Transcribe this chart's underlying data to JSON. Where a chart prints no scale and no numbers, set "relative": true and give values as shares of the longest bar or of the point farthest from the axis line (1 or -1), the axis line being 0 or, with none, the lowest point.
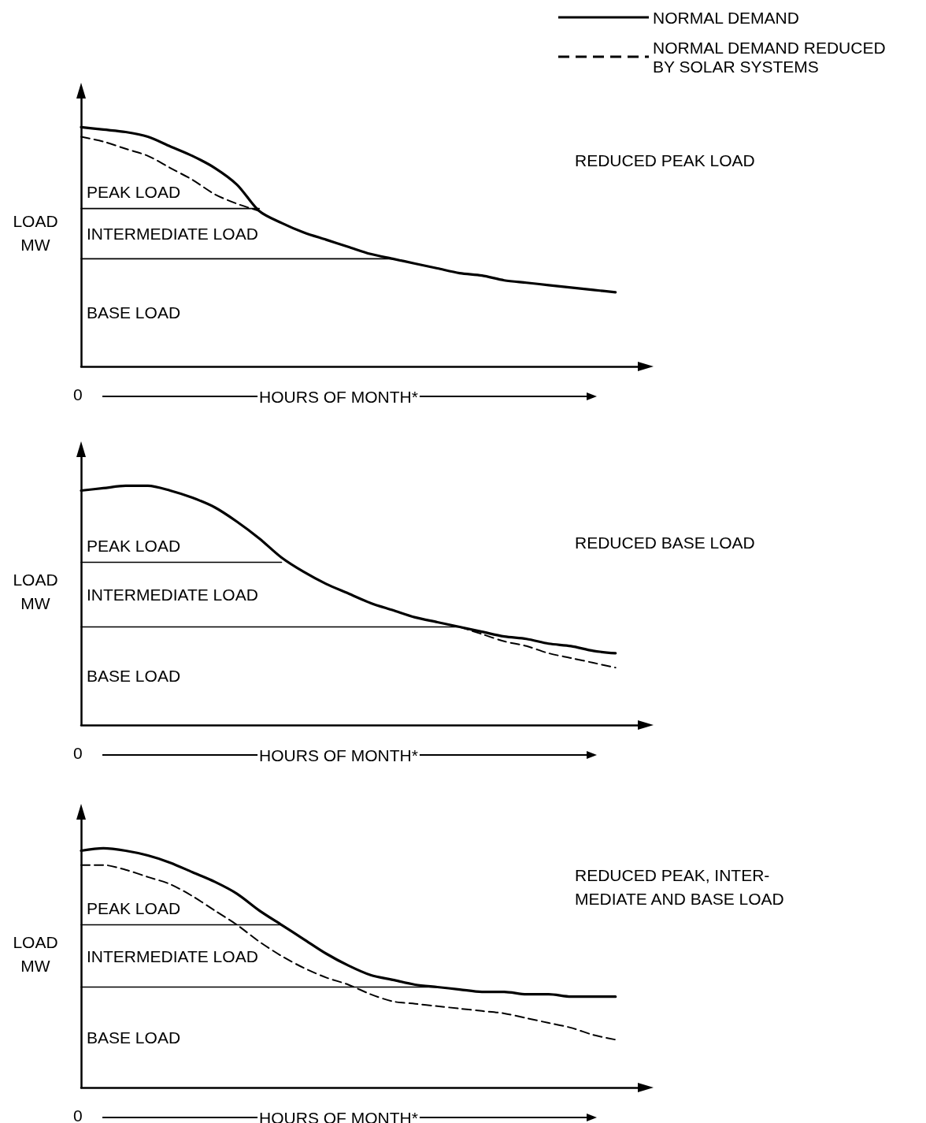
{
  "chart_data": [
    {
      "type": "line",
      "relative": true,
      "title": "REDUCED PEAK LOAD",
      "xlabel": "HOURS OF MONTH*",
      "ylabel": "LOAD\nMW",
      "legend": "top right",
      "marker": "none",
      "categories": [
        null,
        null,
        null,
        null,
        null,
        null,
        null,
        null,
        null,
        null,
        null,
        null,
        null,
        null,
        null,
        null,
        null,
        null,
        null,
        null,
        null,
        null,
        null,
        null,
        null,
        null
      ],
      "series": [
        {
          "name": "NORMAL DEMAND",
          "color": "#000000",
          "line_style": "solid",
          "values": [
            1,
            0.99,
            0.98,
            0.96,
            0.92,
            0.88,
            0.83,
            0.76,
            0.65,
            0.6,
            0.56,
            0.53,
            0.5,
            0.47,
            0.45,
            0.43,
            0.41,
            0.39,
            0.38,
            0.36,
            0.35,
            0.34,
            0.33,
            0.32,
            0.31,
            null
          ]
        },
        {
          "name": "NORMAL DEMAND REDUCED BY SOLAR SYSTEMS",
          "color": "#000000",
          "line_style": "dashed",
          "values": [
            0.96,
            0.94,
            0.91,
            0.88,
            0.83,
            0.78,
            0.72,
            0.68,
            0.65,
            null,
            null,
            null,
            null,
            null,
            null,
            null,
            null,
            null,
            null,
            null,
            null,
            null,
            null,
            null,
            null,
            null
          ]
        },
        {
          "color": "#000000",
          "line_style": "solid",
          "values": [
            0.66,
            0.66,
            0.66,
            0.66,
            0.66,
            0.66,
            0.66,
            0.66,
            0.66,
            null,
            null,
            null,
            null,
            null,
            null,
            null,
            null,
            null,
            null,
            null,
            null,
            null,
            null,
            null,
            null,
            null
          ]
        },
        {
          "color": "#000000",
          "line_style": "solid",
          "values": [
            0.45,
            0.45,
            0.45,
            0.45,
            0.45,
            0.45,
            0.45,
            0.45,
            0.45,
            0.45,
            0.45,
            0.45,
            0.45,
            0.45,
            0.45,
            null,
            null,
            null,
            null,
            null,
            null,
            null,
            null,
            null,
            null,
            null
          ]
        }
      ],
      "annotations": [
        "0",
        "PEAK LOAD",
        "INTERMEDIATE LOAD",
        "BASE LOAD"
      ]
    },
    {
      "type": "line",
      "relative": true,
      "title": "REDUCED BASE LOAD",
      "xlabel": "HOURS OF MONTH*",
      "ylabel": "LOAD\nMW",
      "marker": "none",
      "categories": [
        null,
        null,
        null,
        null,
        null,
        null,
        null,
        null,
        null,
        null,
        null,
        null,
        null,
        null,
        null,
        null,
        null,
        null,
        null,
        null,
        null,
        null,
        null,
        null,
        null,
        null
      ],
      "series": [
        {
          "color": "#000000",
          "line_style": "solid",
          "values": [
            0.98,
            0.99,
            1,
            1,
            0.98,
            0.95,
            0.91,
            0.85,
            0.78,
            0.7,
            0.64,
            0.59,
            0.55,
            0.51,
            0.48,
            0.45,
            0.43,
            0.41,
            0.39,
            0.37,
            0.36,
            0.34,
            0.33,
            0.31,
            0.3,
            null
          ]
        },
        {
          "color": "#000000",
          "line_style": "dashed",
          "values": [
            null,
            null,
            null,
            null,
            null,
            null,
            null,
            null,
            null,
            null,
            null,
            null,
            null,
            null,
            null,
            null,
            null,
            0.41,
            0.38,
            0.35,
            0.33,
            0.3,
            0.28,
            0.26,
            0.24,
            null
          ]
        },
        {
          "color": "#000000",
          "line_style": "solid",
          "values": [
            0.68,
            0.68,
            0.68,
            0.68,
            0.68,
            0.68,
            0.68,
            0.68,
            0.68,
            0.68,
            null,
            null,
            null,
            null,
            null,
            null,
            null,
            null,
            null,
            null,
            null,
            null,
            null,
            null,
            null,
            null
          ]
        },
        {
          "color": "#000000",
          "line_style": "solid",
          "values": [
            0.41,
            0.41,
            0.41,
            0.41,
            0.41,
            0.41,
            0.41,
            0.41,
            0.41,
            0.41,
            0.41,
            0.41,
            0.41,
            0.41,
            0.41,
            0.41,
            0.41,
            0.41,
            null,
            null,
            null,
            null,
            null,
            null,
            null,
            null
          ]
        }
      ],
      "annotations": [
        "0",
        "PEAK LOAD",
        "INTERMEDIATE LOAD",
        "BASE LOAD"
      ]
    },
    {
      "type": "line",
      "relative": true,
      "title": "REDUCED PEAK, INTER-\nMEDIATE AND BASE LOAD",
      "xlabel": "HOURS OF MONTH*",
      "ylabel": "LOAD\nMW",
      "marker": "none",
      "categories": [
        null,
        null,
        null,
        null,
        null,
        null,
        null,
        null,
        null,
        null,
        null,
        null,
        null,
        null,
        null,
        null,
        null,
        null,
        null,
        null,
        null,
        null,
        null,
        null,
        null,
        null
      ],
      "series": [
        {
          "color": "#000000",
          "line_style": "solid",
          "values": [
            0.99,
            1,
            0.99,
            0.97,
            0.94,
            0.9,
            0.86,
            0.81,
            0.74,
            0.68,
            0.62,
            0.56,
            0.51,
            0.47,
            0.45,
            0.43,
            0.42,
            0.41,
            0.4,
            0.4,
            0.39,
            0.39,
            0.38,
            0.38,
            0.38,
            null
          ]
        },
        {
          "color": "#000000",
          "line_style": "dashed",
          "values": [
            0.93,
            0.93,
            0.91,
            0.88,
            0.85,
            0.8,
            0.74,
            0.68,
            0.61,
            0.55,
            0.5,
            0.46,
            0.43,
            0.39,
            0.36,
            0.35,
            0.34,
            0.33,
            0.32,
            0.31,
            0.29,
            0.27,
            0.25,
            0.22,
            0.2,
            null
          ]
        },
        {
          "color": "#000000",
          "line_style": "solid",
          "values": [
            0.68,
            0.68,
            0.68,
            0.68,
            0.68,
            0.68,
            0.68,
            0.68,
            0.68,
            0.68,
            null,
            null,
            null,
            null,
            null,
            null,
            null,
            null,
            null,
            null,
            null,
            null,
            null,
            null,
            null,
            null
          ]
        },
        {
          "color": "#000000",
          "line_style": "solid",
          "values": [
            0.42,
            0.42,
            0.42,
            0.42,
            0.42,
            0.42,
            0.42,
            0.42,
            0.42,
            0.42,
            0.42,
            0.42,
            0.42,
            0.42,
            0.42,
            0.42,
            0.42,
            null,
            null,
            null,
            null,
            null,
            null,
            null,
            null,
            null
          ]
        }
      ],
      "annotations": [
        "0",
        "PEAK LOAD",
        "INTERMEDIATE LOAD",
        "BASE LOAD"
      ]
    }
  ]
}
